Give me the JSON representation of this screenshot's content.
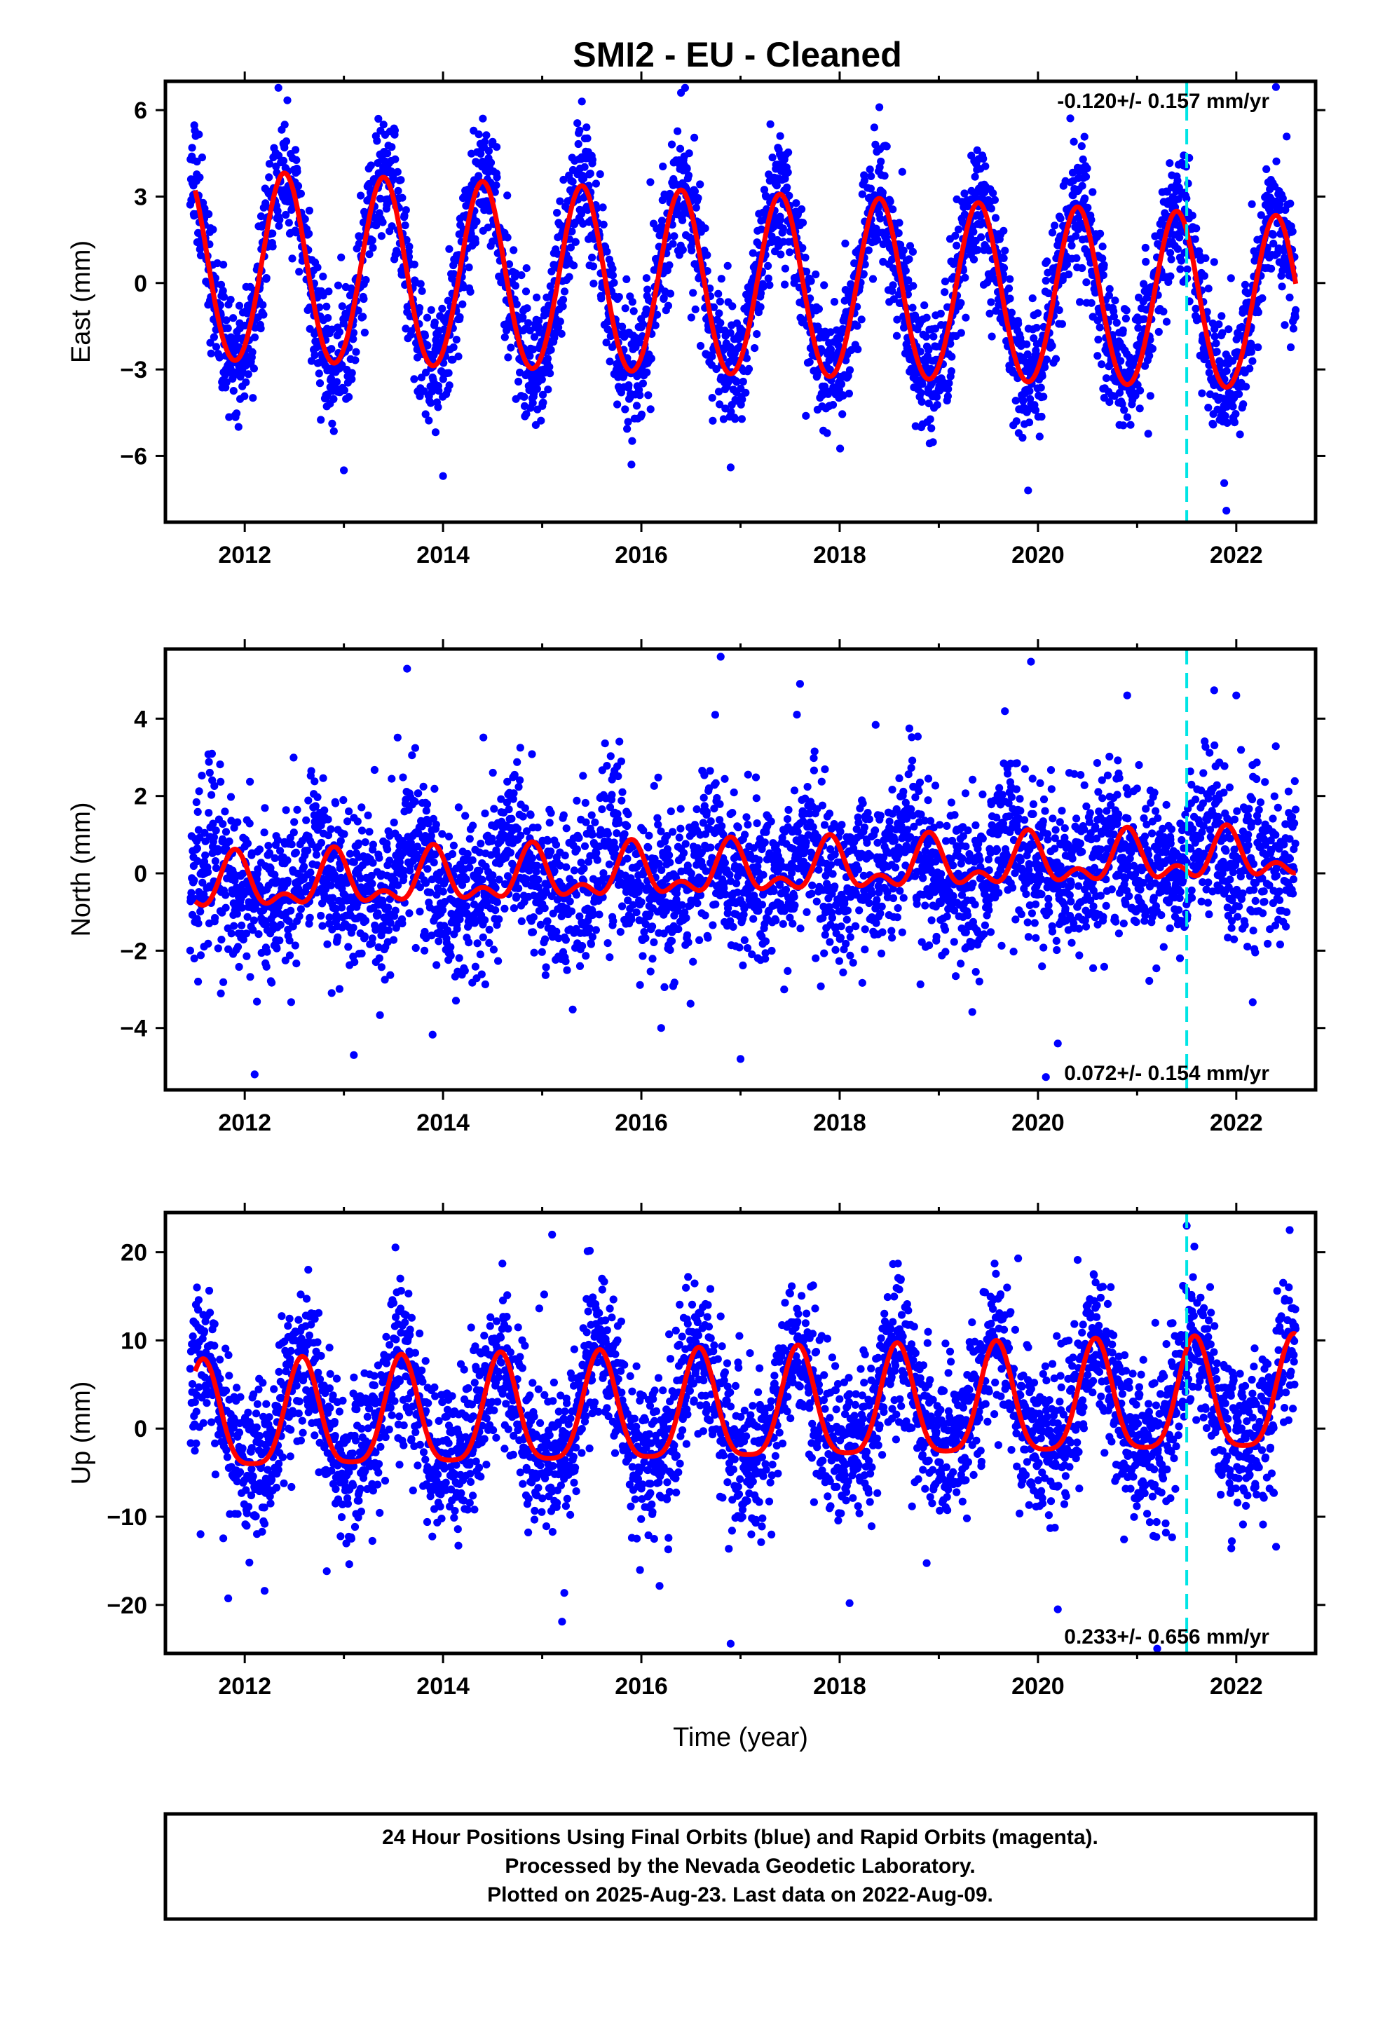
{
  "title": "SMI2  - EU - Cleaned",
  "colors": {
    "final_orbits": "#0000ff",
    "fit": "#ff0000",
    "marker": "#00e5e5",
    "frame": "#000000"
  },
  "chart_data": [
    {
      "type": "scatter",
      "ylabel": "East (mm)",
      "xlim": [
        2011.2,
        2022.8
      ],
      "ylim": [
        -8.3,
        7.0
      ],
      "yticks": [
        -6,
        -3,
        0,
        3,
        6
      ],
      "yticklabels": [
        "−6",
        "−3",
        "0",
        "3",
        "6"
      ],
      "xticks": [
        2012,
        2014,
        2016,
        2018,
        2020,
        2022
      ],
      "rate_text": "-0.120+/- 0.157 mm/yr",
      "rate_position": "top-right",
      "marker_year": 2021.5,
      "fit": {
        "offset": 0.5,
        "trend_per_yr": -0.12,
        "annual_amplitude": [
          3.3,
          3.0
        ],
        "annual_peak_year_fraction": 0.4,
        "semiannual_amplitude": 0.15,
        "start": 2011.5,
        "end": 2022.6
      },
      "scatter": {
        "noise_sd": 1.1,
        "annual_peak_year_fraction": 0.4,
        "seed": 11,
        "start": 2011.45,
        "end": 2022.6,
        "outliers": 0.02
      },
      "sample_points": [
        [
          2012.4,
          4.7
        ],
        [
          2013.4,
          5.5
        ],
        [
          2014.5,
          4.9
        ],
        [
          2015.4,
          6.3
        ],
        [
          2016.4,
          6.6
        ],
        [
          2017.4,
          5.1
        ],
        [
          2018.4,
          6.1
        ],
        [
          2019.4,
          4.3
        ],
        [
          2020.4,
          4.0
        ],
        [
          2021.4,
          3.7
        ],
        [
          2022.4,
          6.8
        ],
        [
          2011.9,
          -4.6
        ],
        [
          2013.0,
          -6.5
        ],
        [
          2014.0,
          -6.7
        ],
        [
          2015.9,
          -6.3
        ],
        [
          2016.9,
          -6.4
        ],
        [
          2019.9,
          -7.2
        ],
        [
          2021.9,
          -7.9
        ]
      ]
    },
    {
      "type": "scatter",
      "ylabel": "North (mm)",
      "xlim": [
        2011.2,
        2022.8
      ],
      "ylim": [
        -5.6,
        5.8
      ],
      "yticks": [
        -4,
        -2,
        0,
        2,
        4
      ],
      "yticklabels": [
        "−4",
        "−2",
        "0",
        "2",
        "4"
      ],
      "xticks": [
        2012,
        2014,
        2016,
        2018,
        2020,
        2022
      ],
      "rate_text": "0.072+/- 0.154 mm/yr",
      "rate_position": "bottom-right",
      "marker_year": 2021.5,
      "fit": {
        "offset": -0.35,
        "trend_per_yr": 0.072,
        "annual_amplitude": [
          0.6,
          0.5
        ],
        "annual_peak_year_fraction": 0.9,
        "semiannual_amplitude": 0.35,
        "start": 2011.5,
        "end": 2022.6
      },
      "scatter": {
        "noise_sd": 1.0,
        "annual_peak_year_fraction": 0.7,
        "seed": 23,
        "start": 2011.45,
        "end": 2022.6,
        "outliers": 0.02
      },
      "sample_points": [
        [
          2016.8,
          5.6
        ],
        [
          2017.6,
          4.9
        ],
        [
          2020.9,
          4.6
        ],
        [
          2022.0,
          4.6
        ],
        [
          2012.1,
          -5.2
        ],
        [
          2013.1,
          -4.7
        ],
        [
          2016.2,
          -4.0
        ],
        [
          2017.0,
          -4.8
        ],
        [
          2020.2,
          -4.4
        ]
      ]
    },
    {
      "type": "scatter",
      "ylabel": "Up (mm)",
      "xlabel": "Time (year)",
      "xlim": [
        2011.2,
        2022.8
      ],
      "ylim": [
        -25.5,
        24.5
      ],
      "yticks": [
        -20,
        -10,
        0,
        10,
        20
      ],
      "yticklabels": [
        "−20",
        "−10",
        "0",
        "10",
        "20"
      ],
      "xticks": [
        2012,
        2014,
        2016,
        2018,
        2020,
        2022
      ],
      "rate_text": "0.233+/- 0.656 mm/yr",
      "rate_position": "bottom-right",
      "marker_year": 2021.5,
      "fit": {
        "offset": 0.5,
        "trend_per_yr": 0.233,
        "annual_amplitude": [
          6.0,
          6.3
        ],
        "annual_peak_year_fraction": 0.58,
        "semiannual_amplitude": 1.4,
        "start": 2011.5,
        "end": 2022.6
      },
      "scatter": {
        "noise_sd": 4.2,
        "annual_peak_year_fraction": 0.58,
        "seed": 37,
        "start": 2011.45,
        "end": 2022.6,
        "outliers": 0.02
      },
      "sample_points": [
        [
          2015.1,
          22.0
        ],
        [
          2021.5,
          23.0
        ],
        [
          2019.8,
          19.3
        ],
        [
          2016.9,
          -24.4
        ],
        [
          2015.2,
          -21.9
        ],
        [
          2020.2,
          -20.5
        ],
        [
          2012.2,
          -18.4
        ],
        [
          2018.1,
          -19.8
        ]
      ]
    }
  ],
  "footer": {
    "line1": "24 Hour Positions Using Final Orbits (blue) and Rapid Orbits (magenta).",
    "line2": "Processed by the Nevada Geodetic Laboratory.",
    "line3": "Plotted on 2025-Aug-23. Last data on 2022-Aug-09."
  }
}
